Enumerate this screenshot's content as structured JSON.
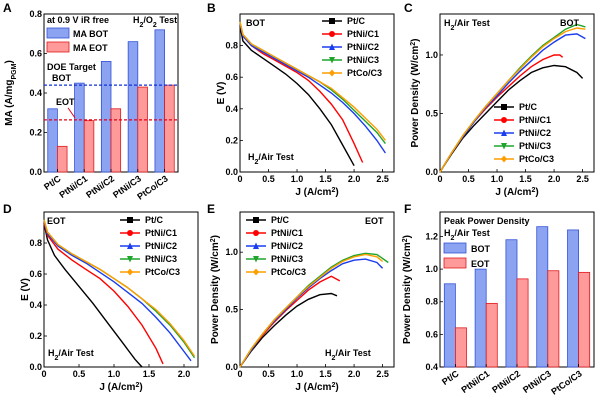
{
  "colors": {
    "PtC": "#000000",
    "PtNiC1": "#ff0000",
    "PtNiC2": "#1a3df0",
    "PtNiC3": "#1fa52b",
    "PtCoC3": "#ff9d00",
    "bar_blue": "#8ba3f0",
    "bar_blue_edge": "#3553d8",
    "bar_red": "#ff9a9a",
    "bar_red_edge": "#e0191d",
    "dash_blue": "#1230d8",
    "dash_red": "#e3001b"
  },
  "chart_data": [
    {
      "panel": "A",
      "type": "bar",
      "title": "at 0.9 V iR free",
      "test_label": "H2/O2 Test",
      "ylabel": "MA (A/mgPGM)",
      "ylim": [
        0,
        0.8
      ],
      "yticks": [
        0.0,
        0.2,
        0.4,
        0.6,
        0.8
      ],
      "categories": [
        "Pt/C",
        "PtNi/C1",
        "PtNi/C2",
        "PtNi/C3",
        "PtCo/C3"
      ],
      "series": [
        {
          "name": "MA BOT",
          "values": [
            0.32,
            0.45,
            0.56,
            0.66,
            0.72
          ]
        },
        {
          "name": "MA EOT",
          "values": [
            0.13,
            0.26,
            0.32,
            0.43,
            0.44
          ]
        }
      ],
      "reference_lines": [
        {
          "name": "DOE Target",
          "label": "BOT",
          "value": 0.44
        },
        {
          "name": "DOE Target",
          "label": "EOT",
          "value": 0.264
        }
      ],
      "ref_title": "DOE Target",
      "ref_bot": "BOT",
      "ref_eot": "EOT"
    },
    {
      "panel": "B",
      "type": "line",
      "title": "BOT",
      "test_label": "H2/Air Test",
      "xlabel": "J (A/cm2)",
      "ylabel": "E (V)",
      "xlim": [
        0,
        2.7
      ],
      "ylim": [
        0,
        1.0
      ],
      "xticks": [
        0,
        0.5,
        1.0,
        1.5,
        2.0,
        2.5
      ],
      "yticks": [
        0.0,
        0.2,
        0.4,
        0.6,
        0.8
      ],
      "series": [
        {
          "name": "Pt/C",
          "x": [
            0,
            0.05,
            0.2,
            0.4,
            0.6,
            0.8,
            1.0,
            1.2,
            1.4,
            1.6,
            1.8,
            2.0
          ],
          "y": [
            0.93,
            0.83,
            0.77,
            0.72,
            0.67,
            0.62,
            0.56,
            0.49,
            0.4,
            0.3,
            0.17,
            0.04
          ]
        },
        {
          "name": "PtNi/C1",
          "x": [
            0,
            0.05,
            0.2,
            0.4,
            0.6,
            0.8,
            1.0,
            1.2,
            1.4,
            1.6,
            1.8,
            2.0,
            2.15
          ],
          "y": [
            0.94,
            0.86,
            0.8,
            0.75,
            0.71,
            0.67,
            0.63,
            0.58,
            0.51,
            0.43,
            0.33,
            0.18,
            0.06
          ]
        },
        {
          "name": "PtNi/C2",
          "x": [
            0,
            0.05,
            0.2,
            0.4,
            0.6,
            0.8,
            1.0,
            1.2,
            1.4,
            1.6,
            1.8,
            2.0,
            2.2,
            2.4,
            2.55
          ],
          "y": [
            0.94,
            0.86,
            0.8,
            0.76,
            0.72,
            0.68,
            0.64,
            0.6,
            0.55,
            0.5,
            0.44,
            0.37,
            0.29,
            0.2,
            0.12
          ]
        },
        {
          "name": "PtNi/C3",
          "x": [
            0,
            0.05,
            0.2,
            0.4,
            0.6,
            0.8,
            1.0,
            1.2,
            1.4,
            1.6,
            1.8,
            2.0,
            2.2,
            2.4,
            2.55
          ],
          "y": [
            0.95,
            0.87,
            0.81,
            0.77,
            0.73,
            0.69,
            0.65,
            0.61,
            0.57,
            0.52,
            0.46,
            0.39,
            0.32,
            0.25,
            0.18
          ]
        },
        {
          "name": "PtCo/C3",
          "x": [
            0,
            0.05,
            0.2,
            0.4,
            0.6,
            0.8,
            1.0,
            1.2,
            1.4,
            1.6,
            1.8,
            2.0,
            2.2,
            2.4,
            2.55
          ],
          "y": [
            0.95,
            0.87,
            0.81,
            0.77,
            0.73,
            0.69,
            0.65,
            0.61,
            0.57,
            0.53,
            0.47,
            0.41,
            0.34,
            0.27,
            0.2
          ]
        }
      ]
    },
    {
      "panel": "C",
      "type": "line",
      "title": "BOT",
      "test_label": "H2/Air Test",
      "xlabel": "J (A/cm2)",
      "ylabel": "Power Density (W/cm2)",
      "xlim": [
        0,
        2.7
      ],
      "ylim": [
        0,
        1.35
      ],
      "xticks": [
        0,
        0.5,
        1.0,
        1.5,
        2.0,
        2.5
      ],
      "yticks": [
        0.0,
        0.5,
        1.0
      ],
      "series": [
        {
          "name": "Pt/C",
          "x": [
            0,
            0.2,
            0.4,
            0.6,
            0.8,
            1.0,
            1.2,
            1.4,
            1.6,
            1.8,
            2.0,
            2.2,
            2.4,
            2.5
          ],
          "y": [
            0,
            0.15,
            0.29,
            0.4,
            0.5,
            0.6,
            0.7,
            0.78,
            0.85,
            0.89,
            0.91,
            0.9,
            0.85,
            0.8
          ]
        },
        {
          "name": "PtNi/C1",
          "x": [
            0,
            0.2,
            0.4,
            0.6,
            0.8,
            1.0,
            1.2,
            1.4,
            1.6,
            1.8,
            2.0,
            2.1,
            2.15
          ],
          "y": [
            0,
            0.16,
            0.3,
            0.43,
            0.54,
            0.64,
            0.73,
            0.82,
            0.9,
            0.96,
            1.0,
            1.0,
            0.98
          ]
        },
        {
          "name": "PtNi/C2",
          "x": [
            0,
            0.2,
            0.4,
            0.6,
            0.8,
            1.0,
            1.2,
            1.4,
            1.6,
            1.8,
            2.0,
            2.2,
            2.4,
            2.55
          ],
          "y": [
            0,
            0.16,
            0.3,
            0.43,
            0.55,
            0.65,
            0.76,
            0.86,
            0.95,
            1.04,
            1.11,
            1.17,
            1.18,
            1.14
          ]
        },
        {
          "name": "PtNi/C3",
          "x": [
            0,
            0.2,
            0.4,
            0.6,
            0.8,
            1.0,
            1.2,
            1.4,
            1.6,
            1.8,
            2.0,
            2.2,
            2.4,
            2.55
          ],
          "y": [
            0,
            0.16,
            0.31,
            0.44,
            0.56,
            0.67,
            0.78,
            0.89,
            0.99,
            1.08,
            1.15,
            1.22,
            1.26,
            1.24
          ]
        },
        {
          "name": "PtCo/C3",
          "x": [
            0,
            0.2,
            0.4,
            0.6,
            0.8,
            1.0,
            1.2,
            1.4,
            1.6,
            1.8,
            2.0,
            2.2,
            2.4,
            2.55
          ],
          "y": [
            0,
            0.16,
            0.31,
            0.44,
            0.56,
            0.67,
            0.78,
            0.88,
            0.98,
            1.07,
            1.14,
            1.2,
            1.23,
            1.22
          ]
        }
      ]
    },
    {
      "panel": "D",
      "type": "line",
      "title": "EOT",
      "test_label": "H2/Air Test",
      "xlabel": "J (A/cm2)",
      "ylabel": "E (V)",
      "xlim": [
        0,
        2.2
      ],
      "ylim": [
        0,
        1.0
      ],
      "xticks": [
        0,
        0.5,
        1.0,
        1.5,
        2.0
      ],
      "yticks": [
        0.0,
        0.2,
        0.4,
        0.6,
        0.8
      ],
      "series": [
        {
          "name": "Pt/C",
          "x": [
            0,
            0.05,
            0.15,
            0.3,
            0.5,
            0.7,
            0.9,
            1.1,
            1.3,
            1.4
          ],
          "y": [
            0.93,
            0.82,
            0.72,
            0.63,
            0.52,
            0.41,
            0.29,
            0.17,
            0.05,
            0.0
          ]
        },
        {
          "name": "PtNi/C1",
          "x": [
            0,
            0.05,
            0.2,
            0.4,
            0.6,
            0.8,
            1.0,
            1.2,
            1.4,
            1.6,
            1.7
          ],
          "y": [
            0.93,
            0.85,
            0.76,
            0.69,
            0.63,
            0.57,
            0.49,
            0.39,
            0.27,
            0.12,
            0.02
          ]
        },
        {
          "name": "PtNi/C2",
          "x": [
            0,
            0.05,
            0.2,
            0.4,
            0.6,
            0.8,
            1.0,
            1.2,
            1.4,
            1.6,
            1.8,
            2.0,
            2.1
          ],
          "y": [
            0.94,
            0.86,
            0.78,
            0.72,
            0.67,
            0.61,
            0.55,
            0.48,
            0.41,
            0.32,
            0.22,
            0.1,
            0.04
          ]
        },
        {
          "name": "PtNi/C3",
          "x": [
            0,
            0.05,
            0.2,
            0.4,
            0.6,
            0.8,
            1.0,
            1.2,
            1.4,
            1.6,
            1.8,
            2.0,
            2.15
          ],
          "y": [
            0.95,
            0.87,
            0.79,
            0.73,
            0.68,
            0.63,
            0.57,
            0.51,
            0.44,
            0.36,
            0.27,
            0.16,
            0.06
          ]
        },
        {
          "name": "PtCo/C3",
          "x": [
            0,
            0.05,
            0.2,
            0.4,
            0.6,
            0.8,
            1.0,
            1.2,
            1.4,
            1.6,
            1.8,
            2.0,
            2.15
          ],
          "y": [
            0.95,
            0.87,
            0.79,
            0.73,
            0.68,
            0.63,
            0.57,
            0.51,
            0.44,
            0.37,
            0.28,
            0.17,
            0.07
          ]
        }
      ]
    },
    {
      "panel": "E",
      "type": "line",
      "title": "EOT",
      "test_label": "H2/Air Test",
      "xlabel": "J (A/cm2)",
      "ylabel": "Power Density (W/cm2)",
      "xlim": [
        0,
        2.7
      ],
      "ylim": [
        0,
        1.35
      ],
      "xticks": [
        0,
        0.5,
        1.0,
        1.5,
        2.0,
        2.5
      ],
      "yticks": [
        0.0,
        0.5,
        1.0
      ],
      "series": [
        {
          "name": "Pt/C",
          "x": [
            0,
            0.2,
            0.4,
            0.6,
            0.8,
            1.0,
            1.2,
            1.4,
            1.6,
            1.7
          ],
          "y": [
            0,
            0.14,
            0.26,
            0.36,
            0.45,
            0.53,
            0.59,
            0.63,
            0.64,
            0.62
          ]
        },
        {
          "name": "PtNi/C1",
          "x": [
            0,
            0.2,
            0.4,
            0.6,
            0.8,
            1.0,
            1.2,
            1.4,
            1.6,
            1.75
          ],
          "y": [
            0,
            0.15,
            0.28,
            0.39,
            0.49,
            0.58,
            0.67,
            0.74,
            0.79,
            0.75
          ]
        },
        {
          "name": "PtNi/C2",
          "x": [
            0,
            0.2,
            0.4,
            0.6,
            0.8,
            1.0,
            1.2,
            1.4,
            1.6,
            1.8,
            2.0,
            2.2,
            2.4,
            2.5
          ],
          "y": [
            0,
            0.15,
            0.29,
            0.4,
            0.5,
            0.6,
            0.69,
            0.77,
            0.84,
            0.9,
            0.93,
            0.94,
            0.91,
            0.86
          ]
        },
        {
          "name": "PtNi/C3",
          "x": [
            0,
            0.2,
            0.4,
            0.6,
            0.8,
            1.0,
            1.2,
            1.4,
            1.6,
            1.8,
            2.0,
            2.2,
            2.4,
            2.6
          ],
          "y": [
            0,
            0.16,
            0.29,
            0.41,
            0.51,
            0.61,
            0.71,
            0.79,
            0.87,
            0.93,
            0.97,
            0.99,
            0.98,
            0.91
          ]
        },
        {
          "name": "PtCo/C3",
          "x": [
            0,
            0.2,
            0.4,
            0.6,
            0.8,
            1.0,
            1.2,
            1.4,
            1.6,
            1.8,
            2.0,
            2.2,
            2.4,
            2.5
          ],
          "y": [
            0,
            0.16,
            0.29,
            0.41,
            0.51,
            0.61,
            0.7,
            0.78,
            0.86,
            0.92,
            0.96,
            0.98,
            0.96,
            0.92
          ]
        }
      ]
    },
    {
      "panel": "F",
      "type": "bar",
      "title": "Peak Power Density",
      "test_label": "H2/Air Test",
      "ylabel": "Power Density (W/cm2)",
      "ylim": [
        0.4,
        1.35
      ],
      "yticks": [
        0.4,
        0.6,
        0.8,
        1.0,
        1.2
      ],
      "categories": [
        "Pt/C",
        "PtNi/C1",
        "PtNi/C2",
        "PtNi/C3",
        "PtCo/C3"
      ],
      "series": [
        {
          "name": "BOT",
          "values": [
            0.91,
            1.0,
            1.18,
            1.26,
            1.24
          ]
        },
        {
          "name": "EOT",
          "values": [
            0.64,
            0.79,
            0.94,
            0.99,
            0.98
          ]
        }
      ]
    }
  ]
}
